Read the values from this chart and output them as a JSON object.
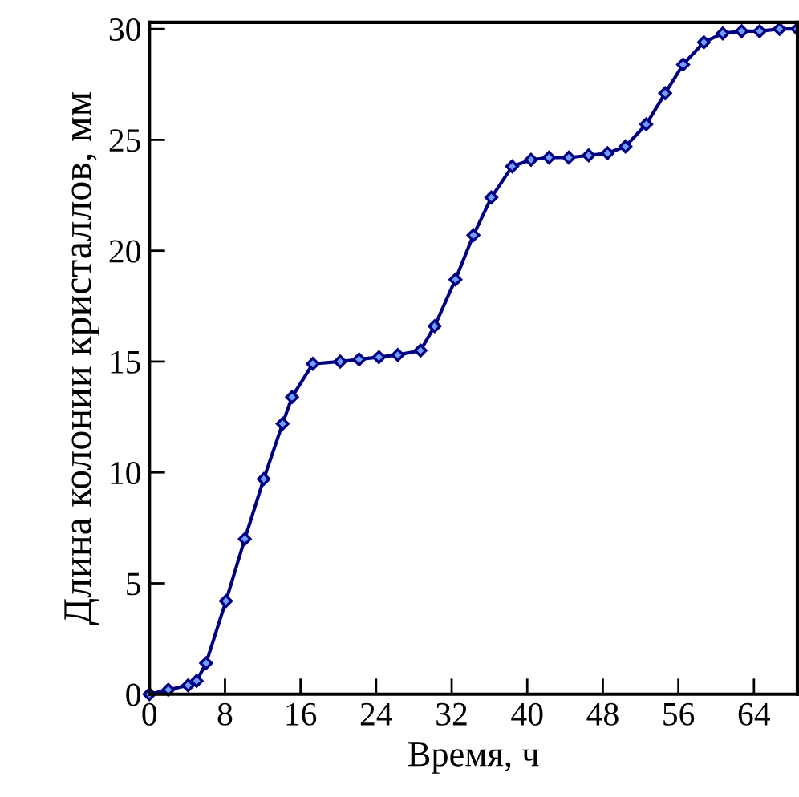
{
  "chart_data": {
    "type": "line",
    "xlabel": "Время, ч",
    "ylabel": "Длина колонии кристаллов, мм",
    "xlim": [
      0,
      68.6
    ],
    "ylim": [
      0,
      30.3
    ],
    "xticks": [
      0,
      8,
      16,
      24,
      32,
      40,
      48,
      56,
      64
    ],
    "yticks": [
      0,
      5,
      10,
      15,
      20,
      25,
      30
    ],
    "grid": false,
    "marker": "diamond",
    "line_style": "solid",
    "series": [
      {
        "color": "#000080",
        "x": [
          0,
          2.0,
          4.1,
          5.0,
          6.0,
          8.1,
          10.1,
          12.1,
          14.1,
          15.1,
          17.3,
          20.2,
          22.2,
          24.3,
          26.3,
          28.7,
          30.2,
          32.4,
          34.3,
          36.2,
          38.4,
          40.4,
          42.3,
          44.4,
          46.5,
          48.5,
          50.4,
          52.6,
          54.6,
          56.5,
          58.7,
          60.7,
          62.7,
          64.6,
          66.7,
          68.6
        ],
        "values": [
          0,
          0.2,
          0.4,
          0.6,
          1.4,
          4.2,
          7.0,
          9.7,
          12.2,
          13.4,
          14.9,
          15.0,
          15.1,
          15.2,
          15.3,
          15.5,
          16.6,
          18.7,
          20.7,
          22.4,
          23.8,
          24.1,
          24.2,
          24.2,
          24.3,
          24.4,
          24.7,
          25.7,
          27.1,
          28.4,
          29.4,
          29.8,
          29.9,
          29.9,
          30.0,
          30.0
        ]
      }
    ]
  }
}
